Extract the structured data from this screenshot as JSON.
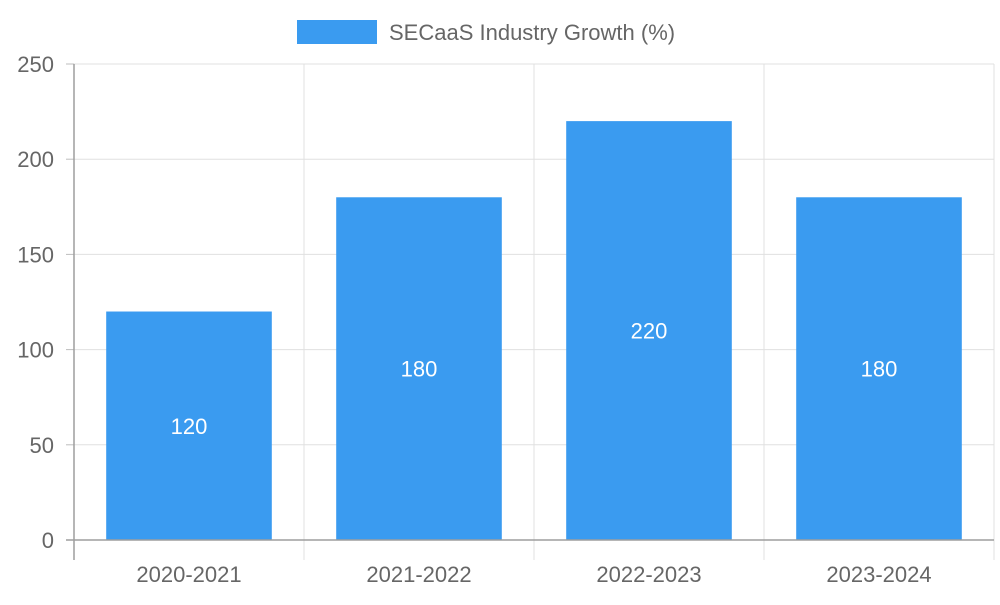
{
  "chart_data": {
    "type": "bar",
    "categories": [
      "2020-2021",
      "2021-2022",
      "2022-2023",
      "2023-2024"
    ],
    "series": [
      {
        "name": "SECaaS Industry Growth (%)",
        "values": [
          120,
          180,
          220,
          180
        ],
        "color": "#3a9bf0"
      }
    ],
    "ylim": [
      0,
      250
    ],
    "yticks": [
      0,
      50,
      100,
      150,
      200,
      250
    ],
    "grid": true,
    "legend_position": "top-center",
    "data_labels": true
  }
}
